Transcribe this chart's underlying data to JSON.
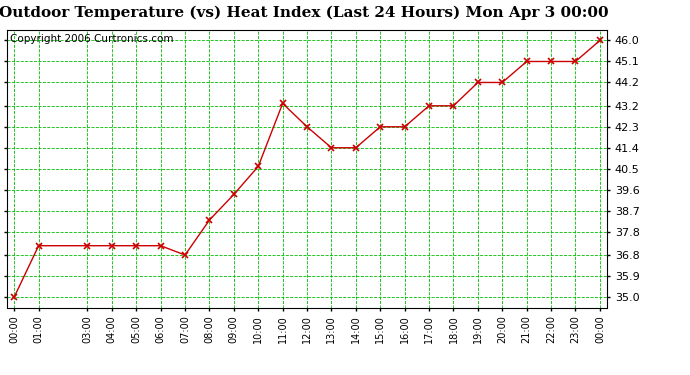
{
  "title": "Outdoor Temperature (vs) Heat Index (Last 24 Hours) Mon Apr 3 00:00",
  "copyright": "Copyright 2006 Curtronics.com",
  "x_labels": [
    "00:00",
    "01:00",
    "03:00",
    "04:00",
    "05:00",
    "06:00",
    "07:00",
    "08:00",
    "09:00",
    "10:00",
    "11:00",
    "12:00",
    "13:00",
    "14:00",
    "15:00",
    "16:00",
    "17:00",
    "18:00",
    "19:00",
    "20:00",
    "21:00",
    "22:00",
    "23:00",
    "00:00"
  ],
  "x_values": [
    0,
    1,
    3,
    4,
    5,
    6,
    7,
    8,
    9,
    10,
    11,
    12,
    13,
    14,
    15,
    16,
    17,
    18,
    19,
    20,
    21,
    22,
    23,
    24
  ],
  "y_values": [
    35.0,
    37.2,
    37.2,
    37.2,
    37.2,
    37.2,
    36.8,
    38.3,
    39.4,
    40.6,
    43.3,
    42.3,
    41.4,
    41.4,
    42.3,
    42.3,
    43.2,
    43.2,
    44.2,
    44.2,
    45.1,
    45.1,
    45.1,
    46.0
  ],
  "line_color": "#cc0000",
  "marker": "x",
  "marker_color": "#cc0000",
  "bg_color": "#ffffff",
  "plot_bg_color": "#ffffff",
  "grid_color": "#00bb00",
  "grid_style": "--",
  "yticks": [
    35.0,
    35.9,
    36.8,
    37.8,
    38.7,
    39.6,
    40.5,
    41.4,
    42.3,
    43.2,
    44.2,
    45.1,
    46.0
  ],
  "ylim": [
    34.55,
    46.45
  ],
  "xlim": [
    -0.3,
    24.3
  ],
  "title_fontsize": 11,
  "copyright_fontsize": 7.5,
  "ytick_fontsize": 8,
  "xtick_fontsize": 7
}
